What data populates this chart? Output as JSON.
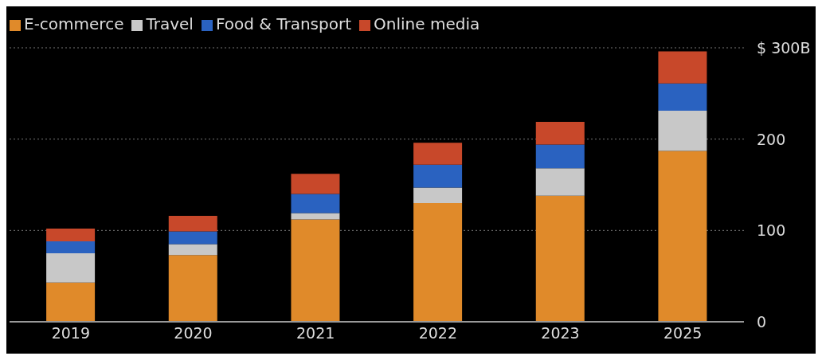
{
  "chart_data": {
    "type": "bar",
    "stacked": true,
    "categories": [
      "2019",
      "2020",
      "2021",
      "2022",
      "2023",
      "2025"
    ],
    "series": [
      {
        "name": "E-commerce",
        "color": "#e08a2a",
        "values": [
          43,
          73,
          112,
          130,
          138,
          187
        ]
      },
      {
        "name": "Travel",
        "color": "#c8c8c8",
        "values": [
          32,
          12,
          7,
          17,
          30,
          44
        ]
      },
      {
        "name": "Food & Transport",
        "color": "#2a62c0",
        "values": [
          13,
          14,
          21,
          25,
          26,
          30
        ]
      },
      {
        "name": "Online media",
        "color": "#c8482a",
        "values": [
          14,
          17,
          22,
          24,
          25,
          35
        ]
      }
    ],
    "ylim": [
      0,
      300
    ],
    "yticks": [
      0,
      100,
      200,
      {
        "value": 300,
        "label": "$ 300B"
      }
    ],
    "grid": "y",
    "legend": "top left"
  }
}
